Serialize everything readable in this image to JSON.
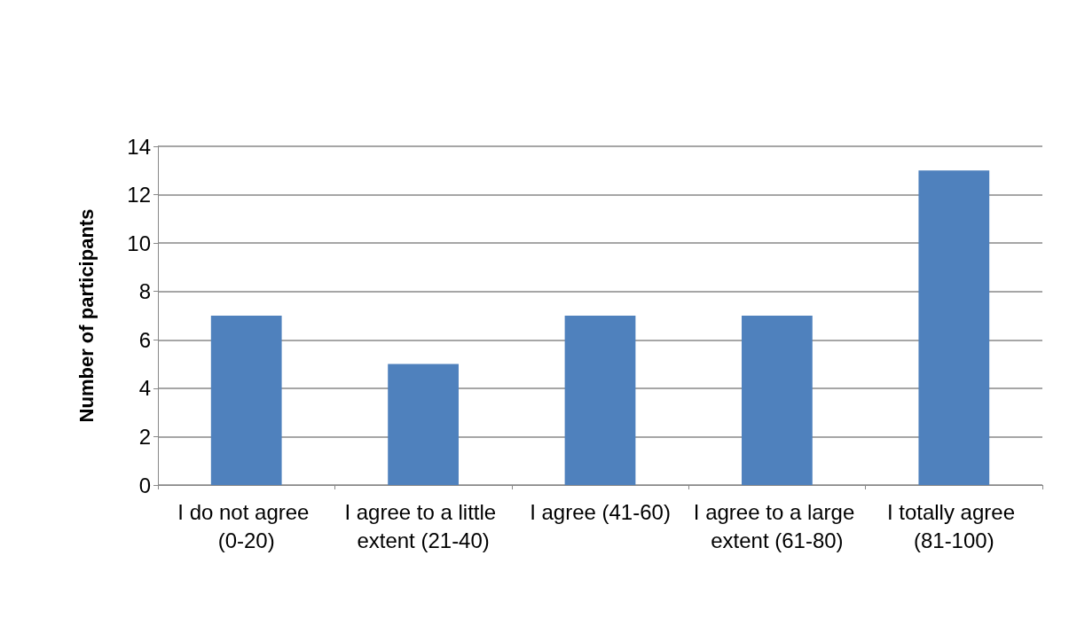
{
  "chart_data": {
    "type": "bar",
    "ylabel": "Number of participants",
    "categories": [
      "I do not agree (0-20)",
      "I agree to a little extent (21-40)",
      "I agree (41-60)",
      "I agree to a large extent (61-80)",
      "I totally agree (81-100)"
    ],
    "values": [
      7,
      5,
      7,
      7,
      13
    ],
    "color": "#4f81bd",
    "ylim": [
      0,
      14
    ],
    "yticks": [
      0,
      2,
      4,
      6,
      8,
      10,
      12,
      14
    ],
    "grid": "y"
  }
}
